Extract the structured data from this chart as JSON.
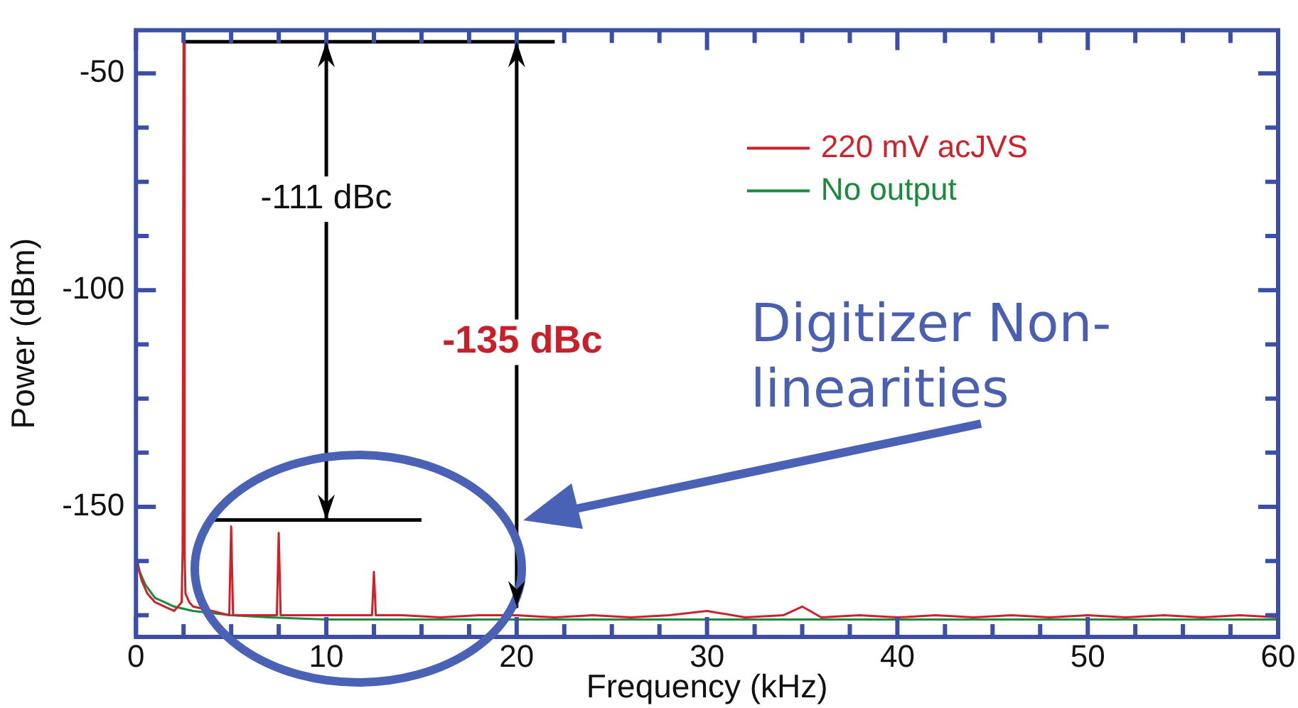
{
  "chart_data": {
    "type": "line",
    "xlabel": "Frequency (kHz)",
    "ylabel": "Power (dBm)",
    "xlim": [
      0,
      60
    ],
    "ylim": [
      -180,
      -40
    ],
    "xticks": [
      0,
      {
        "value": 2.5,
        "label": null
      },
      {
        "value": 5,
        "label": null
      },
      {
        "value": 7.5,
        "label": null
      },
      10,
      {
        "value": 12.5,
        "label": null
      },
      {
        "value": 15,
        "label": null
      },
      {
        "value": 17.5,
        "label": null
      },
      20,
      {
        "value": 22.5,
        "label": null
      },
      {
        "value": 25,
        "label": null
      },
      {
        "value": 27.5,
        "label": null
      },
      30,
      {
        "value": 32.5,
        "label": null
      },
      {
        "value": 35,
        "label": null
      },
      {
        "value": 37.5,
        "label": null
      },
      40,
      {
        "value": 42.5,
        "label": null
      },
      {
        "value": 45,
        "label": null
      },
      {
        "value": 47.5,
        "label": null
      },
      50,
      {
        "value": 52.5,
        "label": null
      },
      {
        "value": 55,
        "label": null
      },
      {
        "value": 57.5,
        "label": null
      },
      60
    ],
    "yticks": [
      {
        "value": -175,
        "label": null
      },
      {
        "value": -162.5,
        "label": null
      },
      -150,
      {
        "value": -137.5,
        "label": null
      },
      {
        "value": -125,
        "label": null
      },
      {
        "value": -112.5,
        "label": null
      },
      -100,
      {
        "value": -87.5,
        "label": null
      },
      {
        "value": -75,
        "label": null
      },
      {
        "value": -62.5,
        "label": null
      },
      -50
    ],
    "grid": false,
    "legend": "top right",
    "marker": "none",
    "line_style": "solid",
    "series": [
      {
        "name": "220 mV acJVS",
        "color": "#d0202a",
        "x": [
          0,
          0.3,
          0.6,
          1,
          1.5,
          2,
          2.4,
          2.45,
          2.5,
          2.55,
          2.6,
          2.8,
          3,
          4,
          4.9,
          5,
          5.1,
          6,
          7.4,
          7.5,
          7.6,
          9,
          10,
          11,
          12.4,
          12.5,
          12.6,
          14,
          16,
          18,
          20,
          22,
          24,
          26,
          28,
          30,
          32,
          34,
          35,
          36,
          38,
          40,
          42,
          44,
          46,
          48,
          50,
          52,
          54,
          56,
          58,
          60
        ],
        "values": [
          -162,
          -167,
          -170,
          -172,
          -173,
          -174,
          -172,
          -160,
          -43,
          -160,
          -170,
          -172,
          -173,
          -174,
          -175,
          -154.5,
          -175,
          -175,
          -175,
          -156,
          -175,
          -175,
          -175,
          -175,
          -175,
          -165,
          -175,
          -175,
          -175.5,
          -175,
          -175,
          -175.5,
          -175,
          -175.5,
          -175,
          -174,
          -175.5,
          -175,
          -173,
          -175.5,
          -175,
          -175.5,
          -175,
          -175.5,
          -175,
          -175.5,
          -175,
          -175.5,
          -175,
          -175.5,
          -175,
          -175.5
        ]
      },
      {
        "name": "No output",
        "color": "#1a8a3c",
        "x": [
          0,
          0.2,
          0.5,
          1,
          1.5,
          2,
          3,
          4,
          5,
          7,
          10,
          15,
          20,
          25,
          30,
          35,
          40,
          45,
          50,
          55,
          60
        ],
        "values": [
          -161,
          -165,
          -168,
          -171,
          -172,
          -173,
          -174,
          -174.5,
          -175,
          -175.5,
          -176,
          -176,
          -176,
          -176,
          -176,
          -176,
          -176,
          -176,
          -176,
          -176,
          -176
        ]
      },
      {
        "color": "#000000",
        "x": [
          2.5,
          22
        ],
        "values": [
          -42.7,
          -42.7
        ]
      },
      {
        "color": "#000000",
        "x": [
          4,
          15
        ],
        "values": [
          -153,
          -153
        ]
      },
      {
        "color": "#000000",
        "x": [
          10,
          10
        ],
        "values": [
          -42.7,
          -153
        ]
      },
      {
        "color": "#000000",
        "x": [
          20,
          20
        ],
        "values": [
          -42.7,
          -173
        ]
      }
    ],
    "annotations": [
      {
        "text": "-111 dBc",
        "x": 10,
        "y": -79
      },
      {
        "text": "-135 dBc",
        "x": 20.3,
        "y": -112
      },
      "Digitizer Non-linearities"
    ]
  }
}
